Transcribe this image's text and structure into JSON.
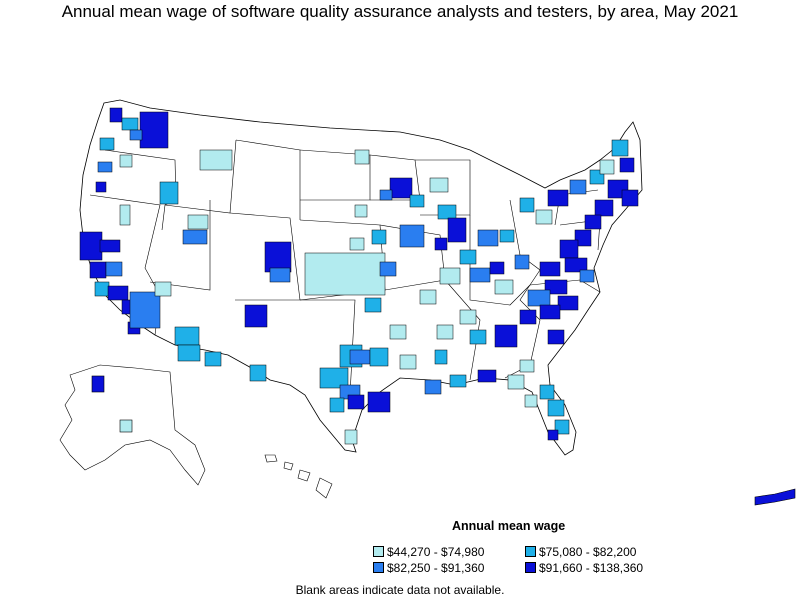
{
  "title": "Annual mean wage of software quality assurance analysts and testers, by area, May 2021",
  "legend": {
    "title": "Annual mean wage",
    "items": [
      {
        "label": "$44,270 - $74,980",
        "color": "#b2ebef"
      },
      {
        "label": "$75,080 - $82,200",
        "color": "#1fb0e8"
      },
      {
        "label": "$82,250 - $91,360",
        "color": "#2a7ef0"
      },
      {
        "label": "$91,660 - $138,360",
        "color": "#0a10d8"
      }
    ]
  },
  "footnote": "Blank areas indicate data not available."
}
